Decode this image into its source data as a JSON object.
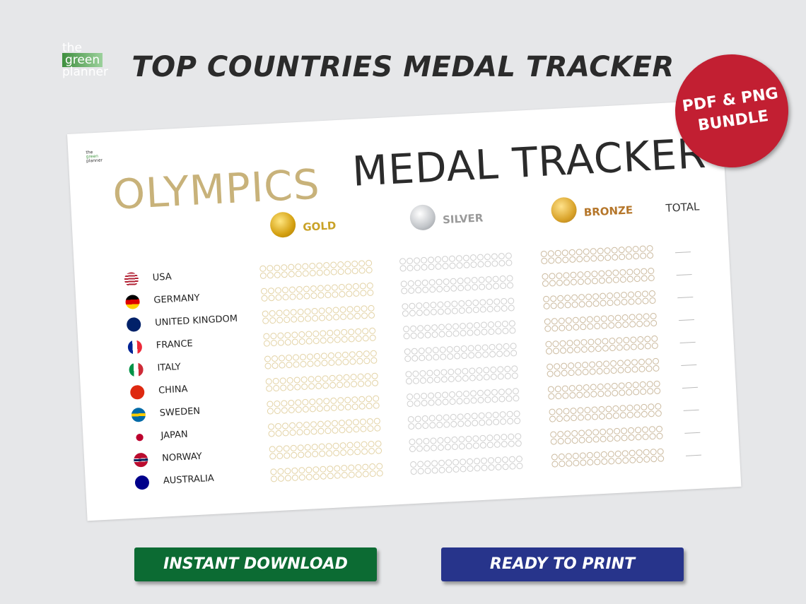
{
  "logo": {
    "line1": "the",
    "line2": "green",
    "line3": "planner"
  },
  "title": "TOP COUNTRIES MEDAL TRACKER",
  "badge": {
    "line1": "PDF & PNG",
    "line2": "BUNDLE"
  },
  "sheet": {
    "title_left": "OLYMPICS",
    "title_right": "MEDAL TRACKER",
    "columns": [
      "GOLD",
      "SILVER",
      "BRONZE",
      "TOTAL"
    ],
    "countries": [
      "USA",
      "GERMANY",
      "UNITED KINGDOM",
      "FRANCE",
      "ITALY",
      "CHINA",
      "SWEDEN",
      "JAPAN",
      "NORWAY",
      "AUSTRALIA"
    ]
  },
  "buttons": [
    "INSTANT DOWNLOAD",
    "READY TO PRINT"
  ]
}
